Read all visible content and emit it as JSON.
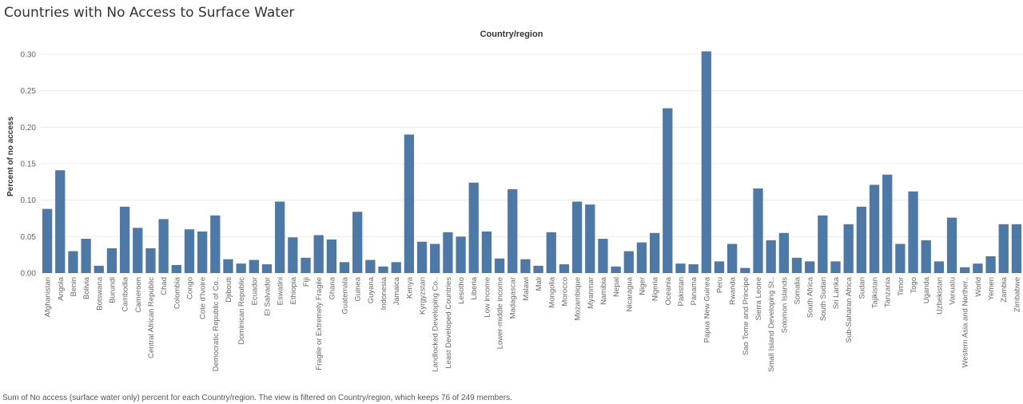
{
  "title": "Countries with No Access to Surface Water",
  "column_header": "Country/region",
  "footer": "Sum of No access (surface water only) percent for each Country/region. The view is filtered on Country/region, which keeps 76 of 249 members.",
  "colors": {
    "bar": "#4e79a7",
    "grid": "#ececec",
    "text": "#666666"
  },
  "chart_data": {
    "type": "bar",
    "title": "Countries with No Access to Surface Water",
    "xlabel": "Country/region",
    "ylabel": "Percent of no access",
    "ylim": [
      0,
      0.3
    ],
    "yticks": [
      "0.00",
      "0.05",
      "0.10",
      "0.15",
      "0.20",
      "0.25",
      "0.30"
    ],
    "grid": true,
    "categories": [
      "Afghanistan",
      "Angola",
      "Benin",
      "Bolivia",
      "Botswana",
      "Burundi",
      "Cambodia",
      "Cameroon",
      "Central African Republic",
      "Chad",
      "Colombia",
      "Congo",
      "Cote d'Ivoire",
      "Democratic Republic of Co..",
      "Djibouti",
      "Dominican Republic",
      "Ecuador",
      "El Salvador",
      "Eswatini",
      "Ethiopia",
      "Fiji",
      "Fragile or Extremely Fragile",
      "Ghana",
      "Guatemala",
      "Guinea",
      "Guyana",
      "Indonesia",
      "Jamaica",
      "Kenya",
      "Kyrgyzstan",
      "Landlocked Developing Co..",
      "Least Developed Countries",
      "Lesotho",
      "Liberia",
      "Low income",
      "Lower-middle income",
      "Madagascar",
      "Malawi",
      "Mali",
      "Mongolia",
      "Morocco",
      "Mozambique",
      "Myanmar",
      "Namibia",
      "Nepal",
      "Nicaragua",
      "Niger",
      "Nigeria",
      "Oceania",
      "Pakistan",
      "Panama",
      "Papua New Guinea",
      "Peru",
      "Rwanda",
      "Sao Tome and Principe",
      "Sierra Leone",
      "Small Island Developing St..",
      "Solomon Islands",
      "Somalia",
      "South Africa",
      "South Sudan",
      "Sri Lanka",
      "Sub-Saharan Africa",
      "Sudan",
      "Tajikistan",
      "Tanzania",
      "Timor",
      "Togo",
      "Uganda",
      "Uzbekistan",
      "Vanuatu",
      "Western Asia and Norther..",
      "World",
      "Yemen",
      "Zambia",
      "Zimbabwe"
    ],
    "values": [
      0.088,
      0.141,
      0.03,
      0.047,
      0.01,
      0.034,
      0.091,
      0.062,
      0.034,
      0.074,
      0.011,
      0.06,
      0.057,
      0.079,
      0.019,
      0.013,
      0.018,
      0.012,
      0.098,
      0.049,
      0.021,
      0.052,
      0.046,
      0.015,
      0.084,
      0.018,
      0.009,
      0.015,
      0.19,
      0.043,
      0.04,
      0.056,
      0.05,
      0.124,
      0.057,
      0.02,
      0.115,
      0.019,
      0.01,
      0.056,
      0.012,
      0.098,
      0.094,
      0.047,
      0.009,
      0.03,
      0.042,
      0.055,
      0.226,
      0.013,
      0.012,
      0.304,
      0.016,
      0.04,
      0.007,
      0.116,
      0.045,
      0.055,
      0.021,
      0.016,
      0.079,
      0.016,
      0.067,
      0.091,
      0.121,
      0.135,
      0.04,
      0.112,
      0.045,
      0.016,
      0.076,
      0.008,
      0.013,
      0.023,
      0.067,
      0.067
    ]
  }
}
